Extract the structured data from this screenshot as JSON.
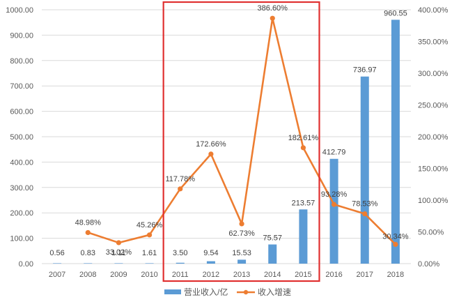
{
  "chart_data": {
    "type": "bar+line",
    "categories": [
      "2007",
      "2008",
      "2009",
      "2010",
      "2011",
      "2012",
      "2013",
      "2014",
      "2015",
      "2016",
      "2017",
      "2018"
    ],
    "series": [
      {
        "name": "营业收入/亿",
        "type": "bar",
        "axis": "left",
        "color": "#5b9bd5",
        "values": [
          0.56,
          0.83,
          1.11,
          1.61,
          3.5,
          9.54,
          15.53,
          75.57,
          213.57,
          412.79,
          736.97,
          960.55
        ],
        "labels": [
          "0.56",
          "0.83",
          "1.11",
          "1.61",
          "3.50",
          "9.54",
          "15.53",
          "75.57",
          "213.57",
          "412.79",
          "736.97",
          "960.55"
        ]
      },
      {
        "name": "收入增速",
        "type": "line",
        "axis": "right",
        "color": "#ed7d31",
        "values": [
          null,
          48.98,
          33.02,
          45.26,
          117.78,
          172.66,
          62.73,
          386.6,
          182.61,
          93.28,
          78.53,
          30.34
        ],
        "labels": [
          "",
          "48.98%",
          "33.02%",
          "45.26%",
          "117.78%",
          "172.66%",
          "62.73%",
          "386.60%",
          "182.61%",
          "93.28%",
          "78.53%",
          "30.34%"
        ]
      }
    ],
    "y_left": {
      "min": 0,
      "max": 1000,
      "step": 100,
      "tick_labels": [
        "0.00",
        "100.00",
        "200.00",
        "300.00",
        "400.00",
        "500.00",
        "600.00",
        "700.00",
        "800.00",
        "900.00",
        "1000.00"
      ]
    },
    "y_right": {
      "min": 0,
      "max": 400,
      "step": 50,
      "tick_labels": [
        "0.00%",
        "50.00%",
        "100.00%",
        "150.00%",
        "200.00%",
        "250.00%",
        "300.00%",
        "350.00%",
        "400.00%"
      ]
    },
    "grid": true,
    "legend_position": "bottom",
    "highlight": {
      "from": "2011",
      "to": "2015",
      "color": "#e03030"
    }
  }
}
